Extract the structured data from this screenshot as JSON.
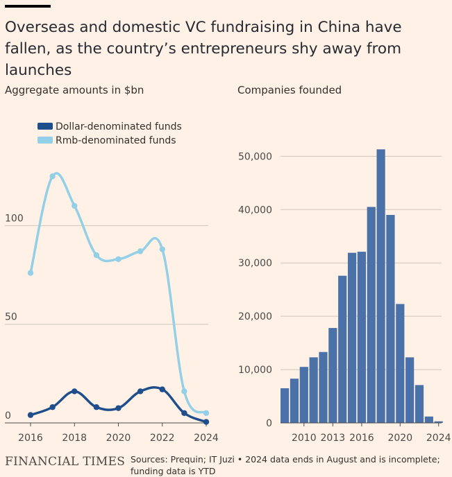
{
  "header": {
    "title": "Overseas and domestic VC fundraising in China have fallen, as the country’s entrepreneurs shy away from launches"
  },
  "footer": {
    "brand": "FINANCIAL TIMES",
    "sources": "Sources: Prequin; IT Juzi • 2024 data ends in August and is incomplete; funding data is YTD"
  },
  "colors": {
    "background": "#fff1e5",
    "dollar": "#1f4e8c",
    "rmb": "#93cfe6",
    "bars": "#4a72a8",
    "grid": "#cfc5bb"
  },
  "chart_data": [
    {
      "type": "line",
      "title": "Aggregate amounts in $bn",
      "x": [
        2016,
        2017,
        2018,
        2019,
        2020,
        2021,
        2022,
        2023,
        2024
      ],
      "xticks": [
        "2016",
        "2018",
        "2020",
        "2022",
        "2024"
      ],
      "yticks": [
        "0",
        "50",
        "100"
      ],
      "ylim": [
        0,
        130
      ],
      "legend_placement": "top-left",
      "series": [
        {
          "name": "Dollar-denominated funds",
          "values": [
            4,
            8,
            16,
            8,
            7.5,
            16,
            17,
            5,
            0.5
          ]
        },
        {
          "name": "Rmb-denominated funds",
          "values": [
            76,
            125,
            110,
            85,
            83,
            87,
            88,
            16,
            5
          ]
        }
      ]
    },
    {
      "type": "bar",
      "title": "Companies founded",
      "x": [
        2008,
        2009,
        2010,
        2011,
        2012,
        2013,
        2014,
        2015,
        2016,
        2017,
        2018,
        2019,
        2020,
        2021,
        2022,
        2023,
        2024
      ],
      "values": [
        6500,
        8300,
        10500,
        12300,
        13300,
        17800,
        27600,
        31900,
        32100,
        40500,
        51300,
        39000,
        22300,
        12300,
        7100,
        1200,
        300
      ],
      "xticks": [
        "2010",
        "2013",
        "2016",
        "2020",
        "2024"
      ],
      "yticks": [
        "0",
        "10,000",
        "20,000",
        "30,000",
        "40,000",
        "50,000"
      ],
      "ylim": [
        0,
        52000
      ],
      "grid": true
    }
  ]
}
